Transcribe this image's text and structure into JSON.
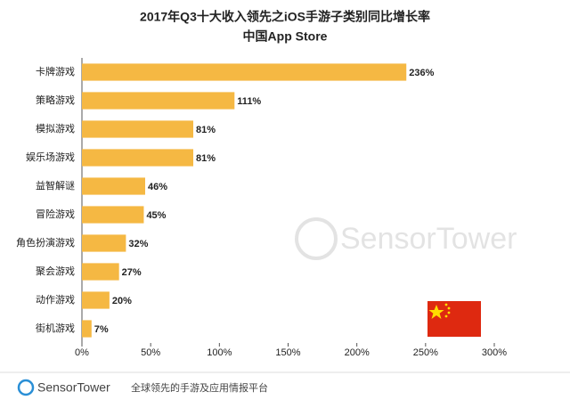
{
  "chart_data": {
    "type": "bar",
    "orientation": "horizontal",
    "title": "2017年Q3十大收入领先之iOS手游子类别同比增长率",
    "subtitle": "中国App Store",
    "categories": [
      "卡牌游戏",
      "策略游戏",
      "模拟游戏",
      "娱乐场游戏",
      "益智解谜",
      "冒险游戏",
      "角色扮演游戏",
      "聚会游戏",
      "动作游戏",
      "街机游戏"
    ],
    "values": [
      236,
      111,
      81,
      81,
      46,
      45,
      32,
      27,
      20,
      7
    ],
    "value_labels": [
      "236%",
      "111%",
      "81%",
      "81%",
      "46%",
      "45%",
      "32%",
      "27%",
      "20%",
      "7%"
    ],
    "color": "#f5b843",
    "xlim": [
      0,
      300
    ],
    "xticks": [
      {
        "value": 0,
        "label": "0%"
      },
      {
        "value": 50,
        "label": "50%"
      },
      {
        "value": 100,
        "label": "100%"
      },
      {
        "value": 150,
        "label": "150%"
      },
      {
        "value": 200,
        "label": "200%"
      },
      {
        "value": 250,
        "label": "250%"
      },
      {
        "value": 300,
        "label": "300%"
      }
    ],
    "grid": false,
    "watermark": "SensorTower",
    "footer": {
      "brand": "SensorTower",
      "tagline": "全球领先的手游及应用情报平台"
    }
  }
}
